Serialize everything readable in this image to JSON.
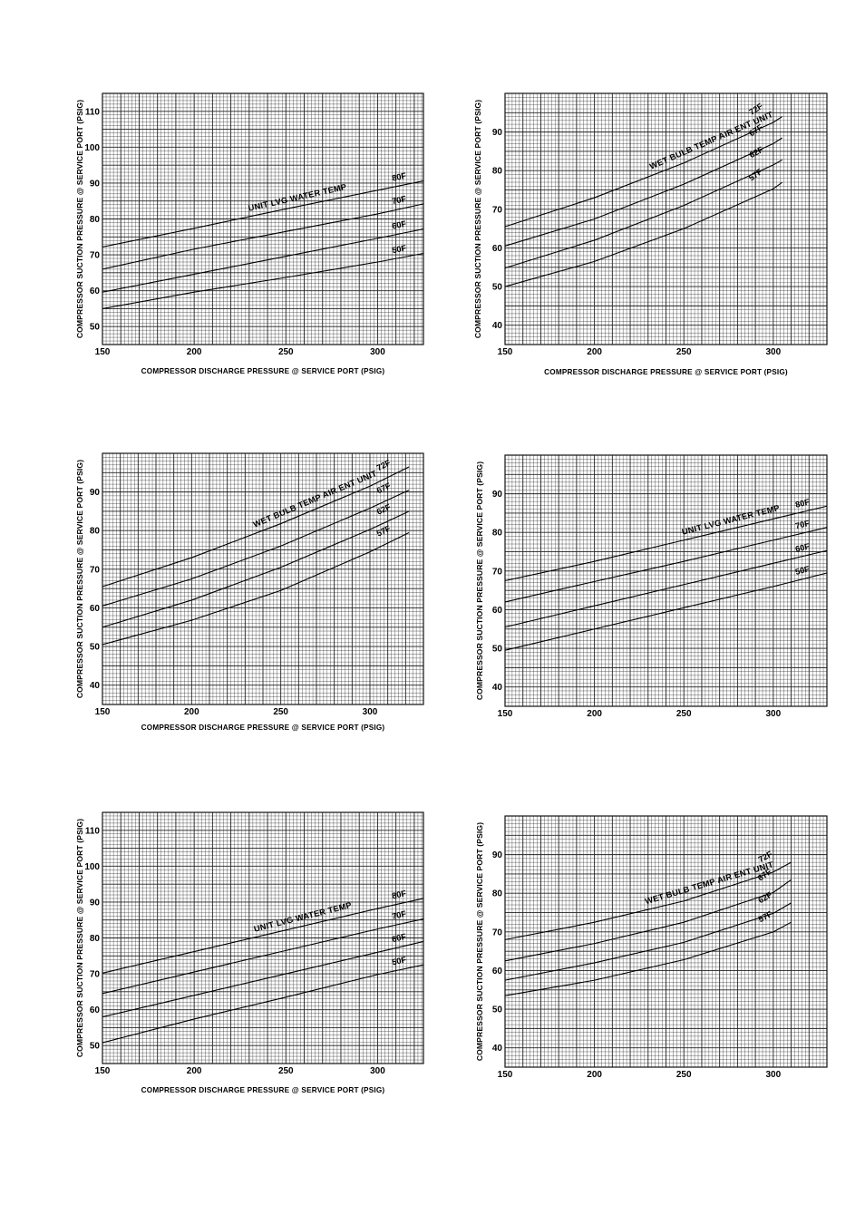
{
  "chart_data": [
    {
      "type": "line",
      "title": "",
      "xlabel": "COMPRESSOR DISCHARGE PRESSURE @ SERVICE PORT (PSIG)",
      "ylabel": "COMPRESSOR SUCTION PRESSURE @ SERVICE PORT (PSIG)",
      "xlim": [
        150,
        325
      ],
      "ylim": [
        45,
        115
      ],
      "xticks": [
        150,
        200,
        250,
        300
      ],
      "yticks": [
        50,
        60,
        70,
        80,
        90,
        100,
        110
      ],
      "ytick_labels": [
        "50",
        "60",
        "70",
        "80",
        "90",
        "100",
        "110"
      ],
      "curve_label": "UNIT LVG WATER TEMP",
      "series": [
        {
          "name": "80F",
          "x": [
            150,
            200,
            250,
            300,
            325
          ],
          "y": [
            72.2,
            77.4,
            82.8,
            88.0,
            90.6
          ]
        },
        {
          "name": "70F",
          "x": [
            150,
            200,
            250,
            300,
            325
          ],
          "y": [
            66.0,
            71.6,
            76.5,
            81.4,
            84.2
          ]
        },
        {
          "name": "60F",
          "x": [
            150,
            200,
            250,
            300,
            325
          ],
          "y": [
            59.6,
            64.6,
            69.6,
            74.6,
            77.2
          ]
        },
        {
          "name": "50F",
          "x": [
            150,
            200,
            250,
            300,
            325
          ],
          "y": [
            55.0,
            59.6,
            63.7,
            68.0,
            70.4
          ]
        }
      ]
    },
    {
      "type": "line",
      "title": "",
      "xlabel": "COMPRESSOR DISCHARGE PRESSURE @ SERVICE PORT (PSIG)",
      "ylabel": "COMPRESSOR SUCTION PRESSURE @ SERVICE PORT (PSIG)",
      "xlim": [
        150,
        330
      ],
      "ylim": [
        35,
        100
      ],
      "xticks": [
        150,
        200,
        250,
        300
      ],
      "yticks": [
        40,
        50,
        60,
        70,
        80,
        90
      ],
      "ytick_labels": [
        "40",
        "50",
        "60",
        "70",
        "80",
        "90"
      ],
      "curve_label": "WET BULB TEMP AIR ENT UNIT",
      "series": [
        {
          "name": "72F",
          "x": [
            150,
            200,
            250,
            300,
            305
          ],
          "y": [
            65.5,
            73.0,
            82.0,
            92.5,
            94.0
          ]
        },
        {
          "name": "67F",
          "x": [
            150,
            200,
            250,
            300,
            305
          ],
          "y": [
            60.5,
            67.5,
            76.5,
            87.0,
            88.5
          ]
        },
        {
          "name": "62F",
          "x": [
            150,
            200,
            250,
            300,
            305
          ],
          "y": [
            54.8,
            62.0,
            71.0,
            81.5,
            82.8
          ]
        },
        {
          "name": "57F",
          "x": [
            150,
            200,
            250,
            300,
            305
          ],
          "y": [
            50.0,
            56.5,
            65.0,
            75.3,
            77.0
          ]
        }
      ]
    },
    {
      "type": "line",
      "title": "",
      "xlabel": "COMPRESSOR DISCHARGE PRESSURE @ SERVICE PORT (PSIG)",
      "ylabel": "COMPRESSOR SUCTION PRESSURE @ SERVICE PORT (PSIG)",
      "xlim": [
        150,
        330
      ],
      "ylim": [
        35,
        100
      ],
      "xticks": [
        150,
        200,
        250,
        300
      ],
      "yticks": [
        40,
        50,
        60,
        70,
        80,
        90
      ],
      "ytick_labels": [
        "40",
        "50",
        "60",
        "70",
        "80",
        "90"
      ],
      "curve_label": "WET BULB TEMP AIR ENT UNIT",
      "series": [
        {
          "name": "72F",
          "x": [
            150,
            200,
            250,
            300,
            322
          ],
          "y": [
            65.5,
            73.0,
            81.8,
            91.5,
            96.5
          ]
        },
        {
          "name": "67F",
          "x": [
            150,
            200,
            250,
            300,
            322
          ],
          "y": [
            60.5,
            67.5,
            76.0,
            85.8,
            90.5
          ]
        },
        {
          "name": "62F",
          "x": [
            150,
            200,
            250,
            300,
            322
          ],
          "y": [
            55.0,
            62.0,
            70.5,
            80.3,
            85.0
          ]
        },
        {
          "name": "57F",
          "x": [
            150,
            200,
            250,
            300,
            322
          ],
          "y": [
            50.5,
            56.8,
            64.5,
            74.5,
            79.5
          ]
        }
      ]
    },
    {
      "type": "line",
      "title": "",
      "xlabel": "",
      "ylabel": "COMPRESSOR SUCTION PRESSURE @ SERVICE PORT (PSIG)",
      "xlim": [
        150,
        330
      ],
      "ylim": [
        35,
        100
      ],
      "xticks": [
        150,
        200,
        250,
        300
      ],
      "yticks": [
        40,
        50,
        60,
        70,
        80,
        90
      ],
      "ytick_labels": [
        "40",
        "50",
        "60",
        "70",
        "80",
        "90"
      ],
      "curve_label": "UNIT LVG WATER TEMP",
      "series": [
        {
          "name": "80F",
          "x": [
            150,
            200,
            250,
            300,
            330
          ],
          "y": [
            67.5,
            72.5,
            78.0,
            83.5,
            86.8
          ]
        },
        {
          "name": "70F",
          "x": [
            150,
            200,
            250,
            300,
            330
          ],
          "y": [
            62.0,
            67.3,
            72.5,
            78.0,
            81.3
          ]
        },
        {
          "name": "60F",
          "x": [
            150,
            200,
            250,
            300,
            330
          ],
          "y": [
            55.5,
            61.0,
            66.5,
            72.0,
            75.3
          ]
        },
        {
          "name": "50F",
          "x": [
            150,
            200,
            250,
            300,
            330
          ],
          "y": [
            49.5,
            55.0,
            60.5,
            66.0,
            69.5
          ]
        }
      ]
    },
    {
      "type": "line",
      "title": "",
      "xlabel": "COMPRESSOR DISCHARGE PRESSURE @ SERVICE PORT (PSIG)",
      "ylabel": "COMPRESSOR SUCTION PRESSURE @ SERVICE PORT (PSIG)",
      "xlim": [
        150,
        325
      ],
      "ylim": [
        45,
        115
      ],
      "xticks": [
        150,
        200,
        250,
        300
      ],
      "yticks": [
        50,
        60,
        70,
        80,
        90,
        100,
        110
      ],
      "ytick_labels": [
        "50",
        "60",
        "70",
        "80",
        "90",
        "100",
        "110"
      ],
      "curve_label": "UNIT LVG WATER TEMP",
      "series": [
        {
          "name": "80F",
          "x": [
            150,
            200,
            250,
            300,
            325
          ],
          "y": [
            70.2,
            76.2,
            82.2,
            88.2,
            91.0
          ]
        },
        {
          "name": "70F",
          "x": [
            150,
            200,
            250,
            300,
            325
          ],
          "y": [
            64.5,
            70.5,
            76.5,
            82.5,
            85.3
          ]
        },
        {
          "name": "60F",
          "x": [
            150,
            200,
            250,
            300,
            325
          ],
          "y": [
            58.0,
            64.0,
            70.0,
            76.0,
            79.0
          ]
        },
        {
          "name": "50F",
          "x": [
            150,
            200,
            250,
            300,
            325
          ],
          "y": [
            50.8,
            57.4,
            63.5,
            69.8,
            72.5
          ]
        }
      ]
    },
    {
      "type": "line",
      "title": "",
      "xlabel": "",
      "ylabel": "COMPRESSOR SUCTION PRESSURE @ SERVICE PORT (PSIG)",
      "xlim": [
        150,
        330
      ],
      "ylim": [
        35,
        100
      ],
      "xticks": [
        150,
        200,
        250,
        300
      ],
      "yticks": [
        40,
        50,
        60,
        70,
        80,
        90
      ],
      "ytick_labels": [
        "40",
        "50",
        "60",
        "70",
        "80",
        "90"
      ],
      "curve_label": "WET BULB TEMP AIR ENT UNIT",
      "series": [
        {
          "name": "72F",
          "x": [
            150,
            200,
            250,
            300,
            310
          ],
          "y": [
            68.0,
            72.5,
            78.0,
            85.5,
            88.0
          ]
        },
        {
          "name": "67F",
          "x": [
            150,
            200,
            250,
            300,
            310
          ],
          "y": [
            62.5,
            67.0,
            72.5,
            80.2,
            83.5
          ]
        },
        {
          "name": "62F",
          "x": [
            150,
            200,
            250,
            300,
            310
          ],
          "y": [
            57.5,
            62.0,
            67.3,
            74.8,
            77.5
          ]
        },
        {
          "name": "57F",
          "x": [
            150,
            200,
            250,
            300,
            310
          ],
          "y": [
            53.5,
            57.5,
            62.8,
            70.0,
            72.5
          ]
        }
      ]
    }
  ]
}
